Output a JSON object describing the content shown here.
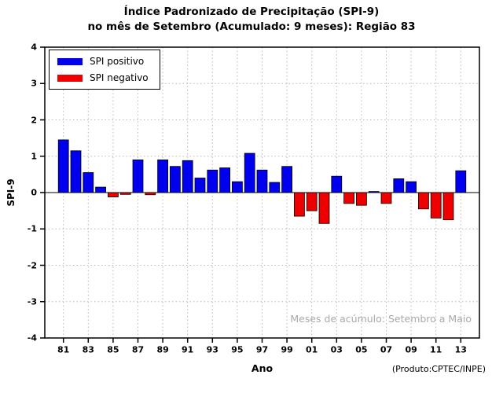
{
  "title": {
    "line1": "Índice Padronizado de Precipitação (SPI-9)",
    "line2": "no mês de Setembro (Acumulado: 9 meses): Região 83"
  },
  "legend": {
    "positive": "SPI positivo",
    "negative": "SPI negativo"
  },
  "annotation": "Meses de acúmulo: Setembro a Maio",
  "credit": "(Produto:CPTEC/INPE)",
  "colors": {
    "positive": "#0000ee",
    "negative": "#ee0000",
    "grid": "#b8b8b8",
    "frame": "#000000",
    "annotation": "#aaaaaa"
  },
  "chart_data": {
    "type": "bar",
    "title": "Índice Padronizado de Precipitação (SPI-9) no mês de Setembro (Acumulado: 9 meses): Região 83",
    "xlabel": "Ano",
    "ylabel": "SPI-9",
    "ylim": [
      -4,
      4
    ],
    "yticks": [
      -4,
      -3,
      -2,
      -1,
      0,
      1,
      2,
      3,
      4
    ],
    "xtick_labels": [
      "81",
      "83",
      "85",
      "87",
      "89",
      "91",
      "93",
      "95",
      "97",
      "99",
      "01",
      "03",
      "05",
      "07",
      "09",
      "11",
      "13"
    ],
    "categories": [
      "81",
      "82",
      "83",
      "84",
      "85",
      "86",
      "87",
      "88",
      "89",
      "90",
      "91",
      "92",
      "93",
      "94",
      "95",
      "96",
      "97",
      "98",
      "99",
      "00",
      "01",
      "02",
      "03",
      "04",
      "05",
      "06",
      "07",
      "08",
      "09",
      "10",
      "11",
      "12",
      "13"
    ],
    "values": [
      1.45,
      1.15,
      0.55,
      0.15,
      -0.12,
      -0.05,
      0.9,
      -0.06,
      0.9,
      0.72,
      0.88,
      0.4,
      0.62,
      0.68,
      0.3,
      1.08,
      0.62,
      0.28,
      0.72,
      -0.65,
      -0.5,
      -0.85,
      0.45,
      -0.3,
      -0.35,
      0.03,
      -0.3,
      0.38,
      0.3,
      -0.45,
      -0.7,
      -0.75,
      0.6
    ],
    "grid": true,
    "legend_position": "top-left"
  }
}
